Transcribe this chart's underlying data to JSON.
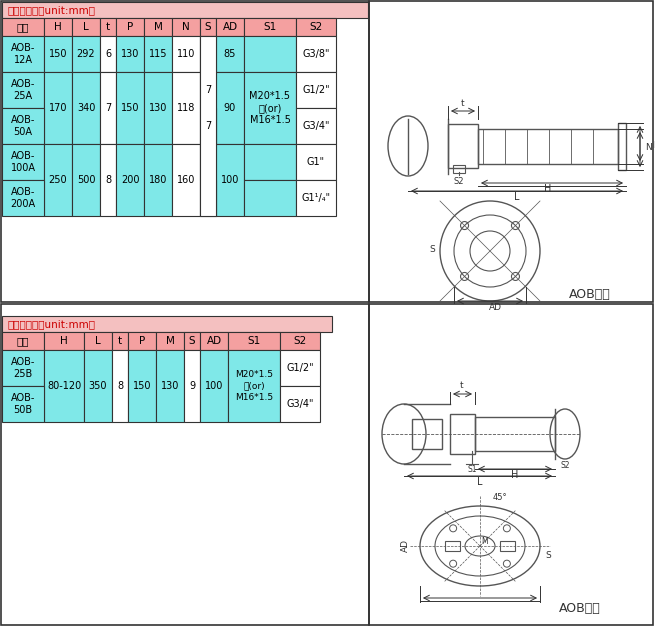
{
  "bg_color": "#f0f0f0",
  "table1_unit": "单位：毫米（unit:mm）",
  "table1_headers": [
    "型号",
    "H",
    "L",
    "t",
    "P",
    "M",
    "N",
    "S",
    "AD",
    "S1",
    "S2"
  ],
  "table1_header_bg": "#f4a0a0",
  "table1_cyan_bg": "#7fe8e8",
  "table1_white_bg": "#ffffff",
  "table1_rows": [
    [
      "AOB-\n12A",
      "150",
      "292",
      "6",
      "130",
      "115",
      "110",
      "",
      "85",
      "",
      "G3/8\""
    ],
    [
      "AOB-\n25A",
      "170",
      "340",
      "7",
      "150",
      "130",
      "118",
      "7",
      "90",
      "M20*1.5\n或(or)\nM16*1.5",
      "G1/2\""
    ],
    [
      "AOB-\n50A",
      "",
      "",
      "",
      "",
      "",
      "",
      "",
      "",
      "",
      "G3/4\""
    ],
    [
      "AOB-\n100A",
      "250",
      "500",
      "8",
      "200",
      "180",
      "160",
      "",
      "100",
      "",
      "G1\""
    ],
    [
      "AOB-\n200A",
      "",
      "",
      "",
      "",
      "",
      "",
      "",
      "",
      "",
      "G1¹/₄\""
    ]
  ],
  "table2_unit": "单位：毫米（unit:mm）",
  "table2_headers": [
    "型号",
    "H",
    "L",
    "t",
    "P",
    "M",
    "S",
    "AD",
    "S1",
    "S2"
  ],
  "table2_header_bg": "#f4a0a0",
  "table2_cyan_bg": "#7fe8e8",
  "table2_white_bg": "#ffffff",
  "table2_rows": [
    [
      "AOB-\n25B",
      "80-120",
      "350",
      "8",
      "150",
      "130",
      "9",
      "100",
      "M20*1.5\n或(or)\nM16*1.5",
      "G1/2\""
    ],
    [
      "AOB-\n50B",
      "",
      "",
      "",
      "",
      "",
      "",
      "",
      "",
      "G3/4\""
    ]
  ],
  "aob_series_label": "AOB系列",
  "outer_border": "#333333"
}
